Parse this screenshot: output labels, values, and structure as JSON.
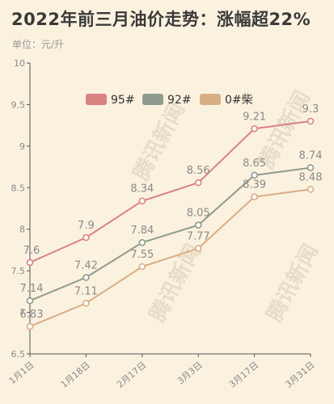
{
  "title": "2022年前三月油价走势：涨幅超22%",
  "unit_label": "单位：元/升",
  "watermark": "腾讯新闻",
  "chart_data": {
    "type": "line",
    "categories": [
      "1月1日",
      "1月18日",
      "2月17日",
      "3月3日",
      "3月17日",
      "3月31日"
    ],
    "series": [
      {
        "name": "95#",
        "color": "#d98282",
        "values": [
          7.6,
          7.9,
          8.34,
          8.56,
          9.21,
          9.3
        ]
      },
      {
        "name": "92#",
        "color": "#8f9c8d",
        "values": [
          7.14,
          7.42,
          7.84,
          8.05,
          8.65,
          8.74
        ]
      },
      {
        "name": "0#柴",
        "color": "#d8ae86",
        "values": [
          6.83,
          7.11,
          7.55,
          7.77,
          8.39,
          8.48
        ]
      }
    ],
    "ylim": [
      6.5,
      10
    ],
    "yticks": [
      "6.5",
      "7",
      "7.5",
      "8",
      "8.5",
      "9",
      "9.5",
      "10"
    ],
    "legend_position": "top",
    "grid": false
  }
}
